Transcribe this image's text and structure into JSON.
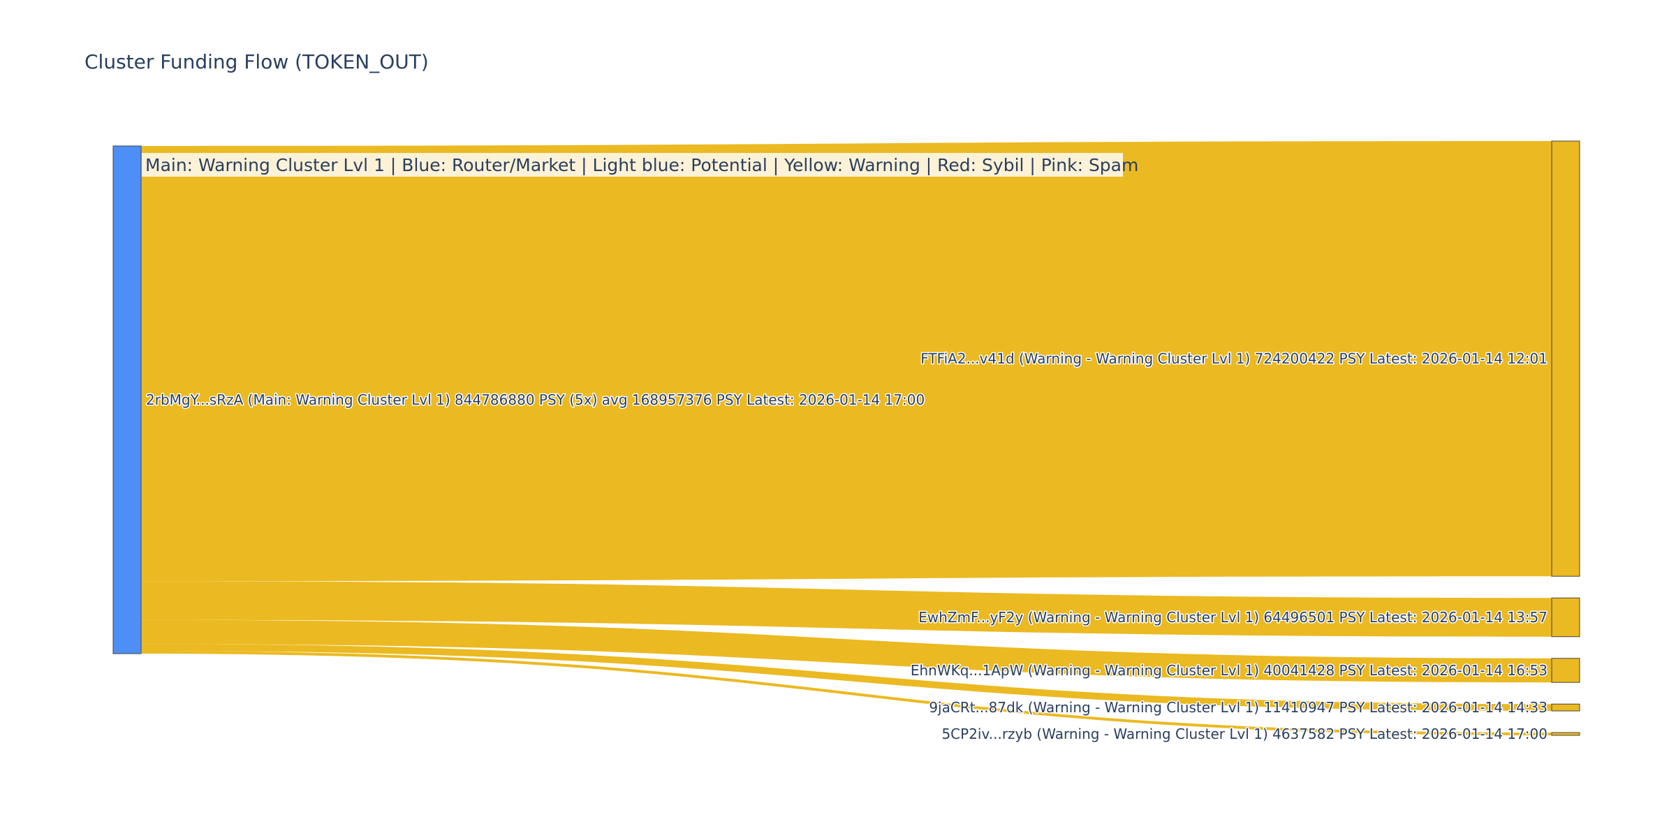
{
  "title": "Cluster Funding Flow (TOKEN_OUT)",
  "legend": "Main: Warning Cluster Lvl 1  |  Blue: Router/Market | Light blue: Potential | Yellow: Warning | Red: Sybil | Pink: Spam",
  "colors": {
    "main_node": "#4e8ff7",
    "warning_node": "#ebb921",
    "link": "#ebb921",
    "node_border": "#444444",
    "legend_bg": "#fdf2d6",
    "text": "#2a3f5f"
  },
  "chart_data": {
    "type": "sankey",
    "title": "Cluster Funding Flow (TOKEN_OUT)",
    "nodes": [
      {
        "id": "2rbMgY...sRzA",
        "label": "2rbMgY...sRzA (Main: Warning Cluster Lvl 1) 844786880 PSY (5x) avg 168957376 PSY Latest: 2026-01-14 17:00",
        "category": "main"
      },
      {
        "id": "FTFiA2...v41d",
        "label": "FTFiA2...v41d (Warning - Warning Cluster Lvl 1) 724200422 PSY Latest: 2026-01-14 12:01",
        "category": "warning"
      },
      {
        "id": "EwhZmF...yF2y",
        "label": "EwhZmF...yF2y (Warning - Warning Cluster Lvl 1) 64496501 PSY Latest: 2026-01-14 13:57",
        "category": "warning"
      },
      {
        "id": "EhnWKq...1ApW",
        "label": "EhnWKq...1ApW (Warning - Warning Cluster Lvl 1) 40041428 PSY Latest: 2026-01-14 16:53",
        "category": "warning"
      },
      {
        "id": "9jaCRt...87dk",
        "label": "9jaCRt...87dk (Warning - Warning Cluster Lvl 1) 11410947 PSY Latest: 2026-01-14 14:33",
        "category": "warning"
      },
      {
        "id": "5CP2iv...rzyb",
        "label": "5CP2iv...rzyb (Warning - Warning Cluster Lvl 1) 4637582 PSY Latest: 2026-01-14 17:00",
        "category": "warning"
      }
    ],
    "links": [
      {
        "source": "2rbMgY...sRzA",
        "target": "FTFiA2...v41d",
        "value": 724200422
      },
      {
        "source": "2rbMgY...sRzA",
        "target": "EwhZmF...yF2y",
        "value": 64496501
      },
      {
        "source": "2rbMgY...sRzA",
        "target": "EhnWKq...1ApW",
        "value": 40041428
      },
      {
        "source": "2rbMgY...sRzA",
        "target": "9jaCRt...87dk",
        "value": 11410947
      },
      {
        "source": "2rbMgY...sRzA",
        "target": "5CP2iv...rzyb",
        "value": 4637582
      }
    ],
    "unit": "PSY"
  }
}
